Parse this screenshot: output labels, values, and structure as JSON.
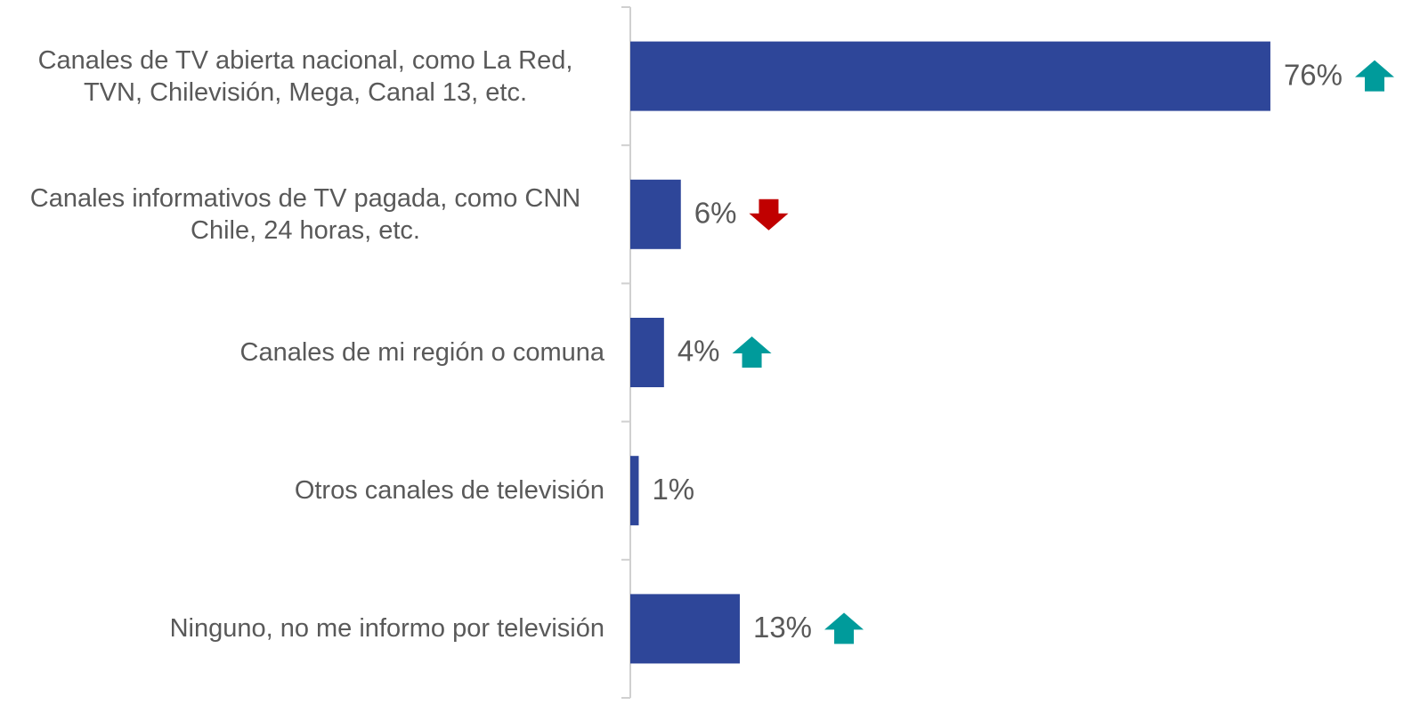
{
  "chart_data": {
    "type": "bar",
    "orientation": "horizontal",
    "categories": [
      "Canales de TV abierta nacional, como La Red, TVN, Chilevisión, Mega, Canal 13, etc.",
      "Canales informativos de TV pagada, como CNN Chile, 24 horas, etc.",
      "Canales de mi región o comuna",
      "Otros canales de televisión",
      "Ninguno, no me informo por televisión"
    ],
    "values": [
      76,
      6,
      4,
      1,
      13
    ],
    "value_labels": [
      "76%",
      "6%",
      "4%",
      "1%",
      "13%"
    ],
    "color": "#2e4699"
  }
}
